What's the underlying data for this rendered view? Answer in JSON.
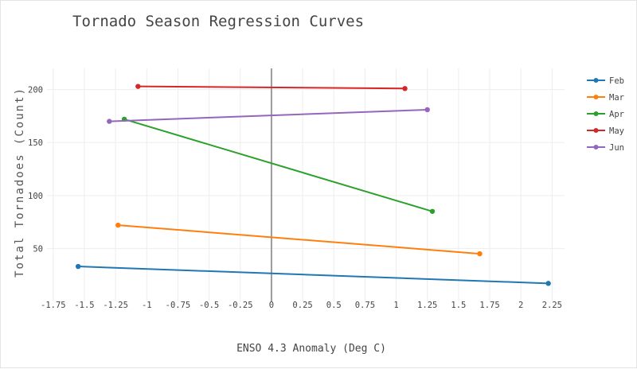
{
  "chart_data": {
    "type": "line",
    "title": "Tornado Season Regression Curves",
    "xlabel": "ENSO 4.3 Anomaly (Deg C)",
    "ylabel": "Total Tornadoes (Count)",
    "xlim": [
      -1.8,
      2.35
    ],
    "ylim": [
      0,
      220
    ],
    "xticks": [
      "-1.75",
      "-1.5",
      "-1.25",
      "-1",
      "-0.75",
      "-0.5",
      "-0.25",
      "0",
      "0.25",
      "0.5",
      "0.75",
      "1",
      "1.25",
      "1.5",
      "1.75",
      "2",
      "2.25"
    ],
    "yticks": [
      "50",
      "100",
      "150",
      "200"
    ],
    "grid": true,
    "legend_position": "right",
    "series": [
      {
        "name": "Feb",
        "color": "#1f77b4",
        "x": [
          -1.55,
          2.22
        ],
        "y": [
          33,
          17
        ]
      },
      {
        "name": "Mar",
        "color": "#ff7f0e",
        "x": [
          -1.23,
          1.67
        ],
        "y": [
          72,
          45
        ]
      },
      {
        "name": "Apr",
        "color": "#2ca02c",
        "x": [
          -1.18,
          1.29
        ],
        "y": [
          172,
          85
        ]
      },
      {
        "name": "May",
        "color": "#d62728",
        "x": [
          -1.07,
          1.07
        ],
        "y": [
          203,
          201
        ]
      },
      {
        "name": "Jun",
        "color": "#9467bd",
        "x": [
          -1.3,
          1.25
        ],
        "y": [
          170,
          181
        ]
      }
    ]
  }
}
